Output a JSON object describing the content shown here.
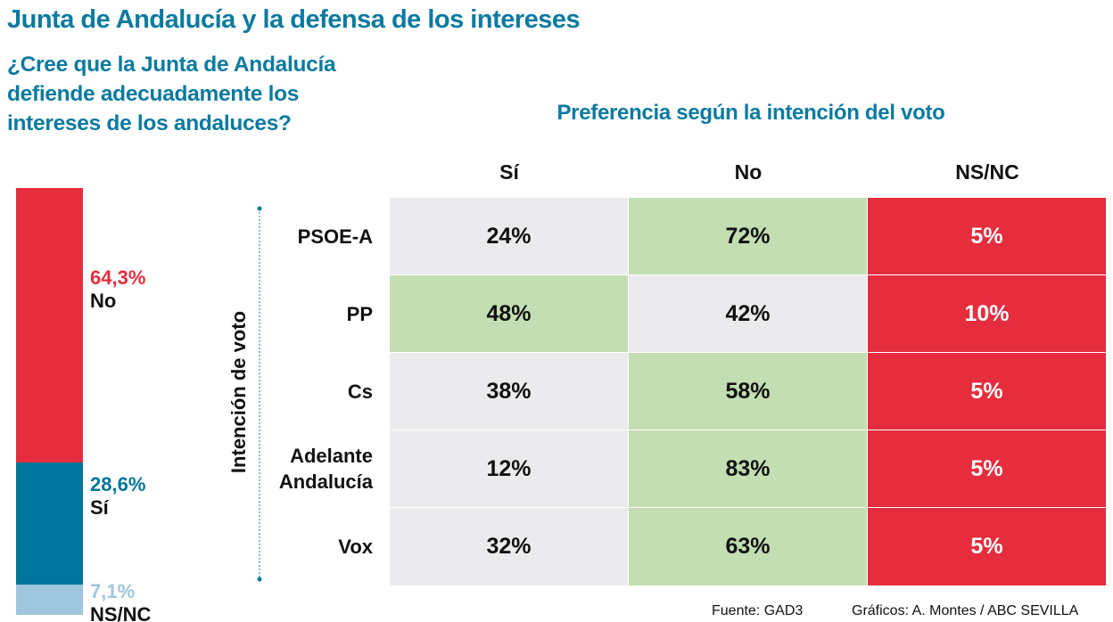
{
  "title": "Junta de Andalucía y la defensa de los intereses",
  "question": "¿Cree que la Junta de Andalucía defiende adecuadamente los intereses de los andaluces?",
  "subtitle": "Preferencia según la intención del voto",
  "axis_label": "Intención de voto",
  "colors": {
    "no": "#e52d3e",
    "si": "#00759c",
    "nsnc": "#9fc6de",
    "highlight": "#c3deb2",
    "neutral": "#ebebee",
    "title": "#0b7aa0"
  },
  "chart_data": [
    {
      "type": "bar",
      "stacked": true,
      "categories": [
        "No",
        "Sí",
        "NS/NC"
      ],
      "values": [
        64.3,
        28.6,
        7.1
      ],
      "value_labels": [
        "64,3%",
        "28,6%",
        "7,1%"
      ]
    },
    {
      "type": "table",
      "columns": [
        "Sí",
        "No",
        "NS/NC"
      ],
      "rows": [
        {
          "label": "PSOE-A",
          "values": [
            "24%",
            "72%",
            "5%"
          ],
          "highlight": 1
        },
        {
          "label": "PP",
          "values": [
            "48%",
            "42%",
            "10%"
          ],
          "highlight": 0
        },
        {
          "label": "Cs",
          "values": [
            "38%",
            "58%",
            "5%"
          ],
          "highlight": 1
        },
        {
          "label": "Adelante Andalucía",
          "values": [
            "12%",
            "83%",
            "5%"
          ],
          "highlight": 1
        },
        {
          "label": "Vox",
          "values": [
            "32%",
            "63%",
            "5%"
          ],
          "highlight": 1
        }
      ]
    }
  ],
  "footer": {
    "source": "Fuente: GAD3",
    "credits": "Gráficos: A. Montes / ABC SEVILLA"
  }
}
